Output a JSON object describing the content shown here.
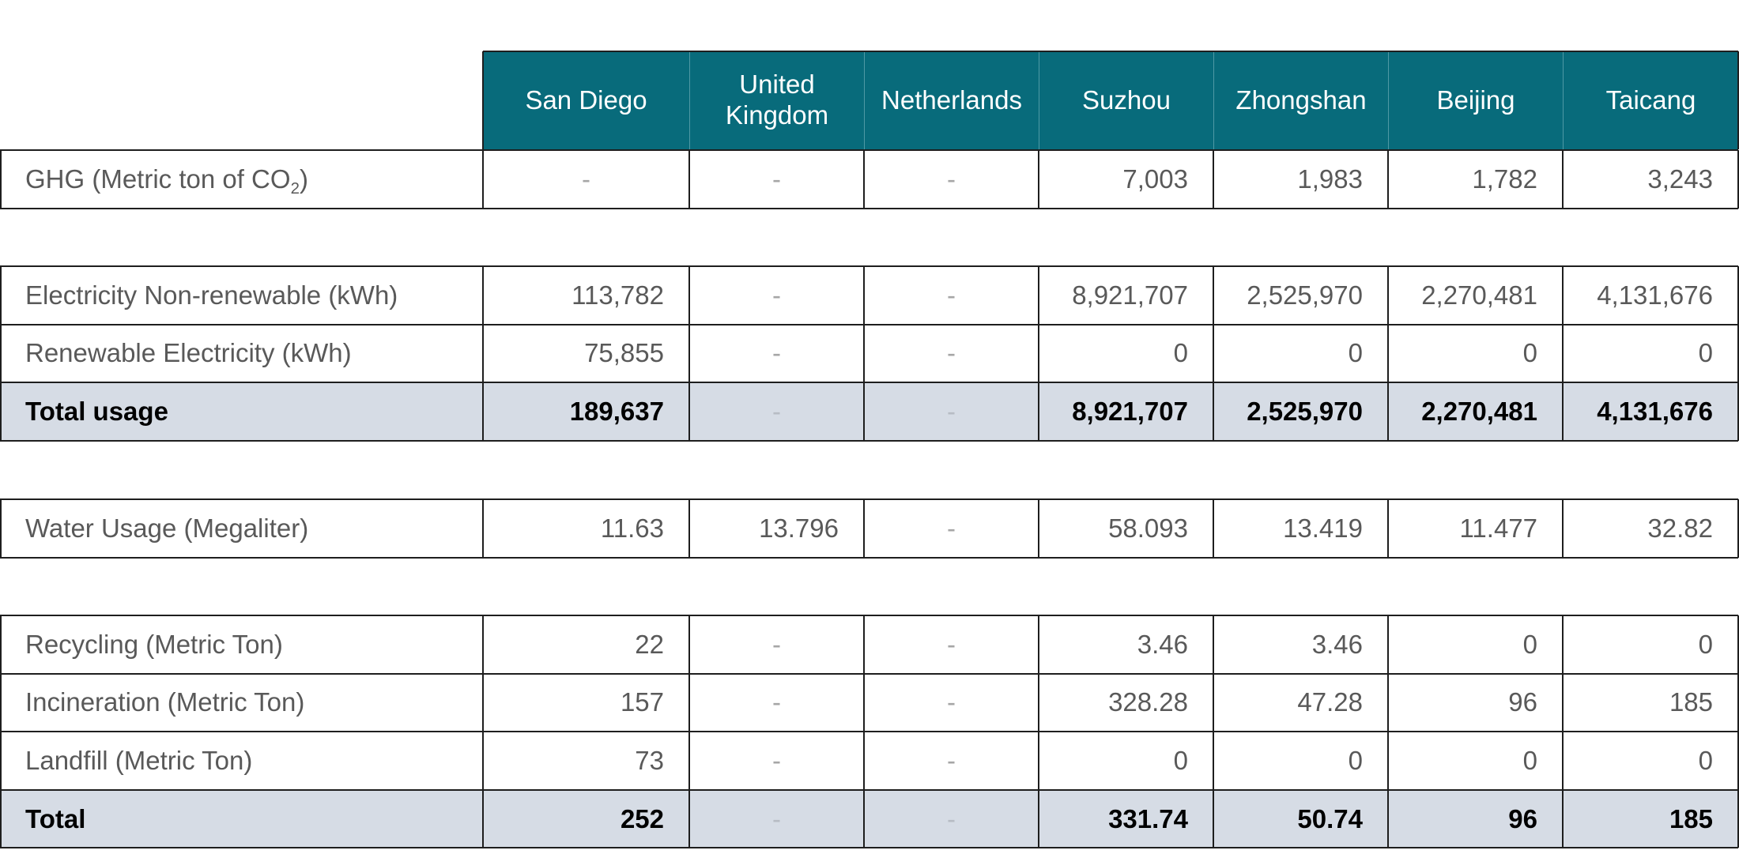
{
  "columns": [
    "San Diego",
    "United Kingdom",
    "Netherlands",
    "Suzhou",
    "Zhongshan",
    "Beijing",
    "Taicang"
  ],
  "groups": [
    {
      "rows": [
        {
          "label_main": "GHG (Metric ton of CO",
          "label_sub": "2",
          "label_tail": ")",
          "is_total": false,
          "values": [
            "-",
            "-",
            "-",
            "7,003",
            "1,983",
            "1,782",
            "3,243"
          ]
        }
      ]
    },
    {
      "rows": [
        {
          "label": "Electricity Non-renewable (kWh)",
          "is_total": false,
          "values": [
            "113,782",
            "-",
            "-",
            "8,921,707",
            "2,525,970",
            "2,270,481",
            "4,131,676"
          ]
        },
        {
          "label": "Renewable Electricity (kWh)",
          "is_total": false,
          "values": [
            "75,855",
            "-",
            "-",
            "0",
            "0",
            "0",
            "0"
          ]
        },
        {
          "label": "Total usage",
          "is_total": true,
          "values": [
            "189,637",
            "-",
            "-",
            "8,921,707",
            "2,525,970",
            "2,270,481",
            "4,131,676"
          ]
        }
      ]
    },
    {
      "rows": [
        {
          "label": "Water Usage (Megaliter)",
          "is_total": false,
          "values": [
            "11.63",
            "13.796",
            "-",
            "58.093",
            "13.419",
            "11.477",
            "32.82"
          ]
        }
      ]
    },
    {
      "rows": [
        {
          "label": "Recycling (Metric Ton)",
          "is_total": false,
          "values": [
            "22",
            "-",
            "-",
            "3.46",
            "3.46",
            "0",
            "0"
          ]
        },
        {
          "label": "Incineration (Metric Ton)",
          "is_total": false,
          "values": [
            "157",
            "-",
            "-",
            "328.28",
            "47.28",
            "96",
            "185"
          ]
        },
        {
          "label": "Landfill (Metric Ton)",
          "is_total": false,
          "values": [
            "73",
            "-",
            "-",
            "0",
            "0",
            "0",
            "0"
          ]
        },
        {
          "label": "Total",
          "is_total": true,
          "values": [
            "252",
            "-",
            "-",
            "331.74",
            "50.74",
            "96",
            "185"
          ]
        }
      ]
    }
  ],
  "colors": {
    "header_bg": "#086b7b",
    "total_row_bg": "#d6dce5",
    "text": "#595959",
    "dash": "#a6a6a6"
  }
}
